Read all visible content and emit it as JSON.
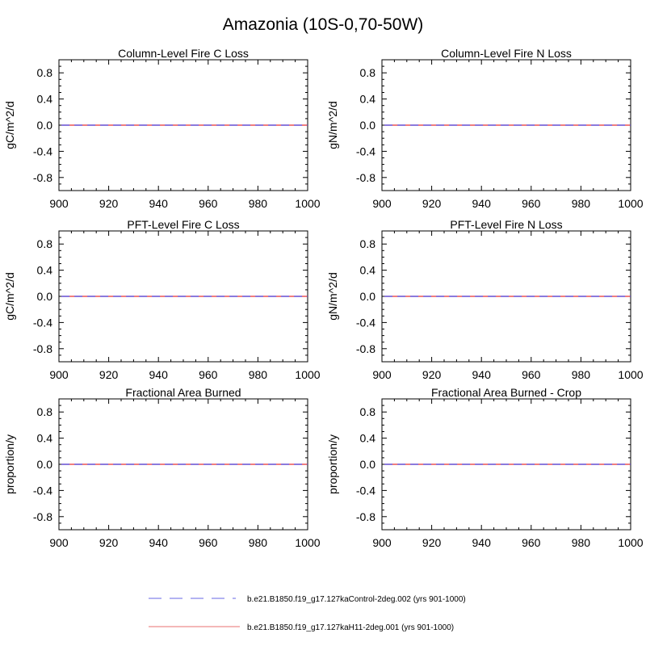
{
  "figure": {
    "title": "Amazonia (10S-0,70-50W)"
  },
  "chart_data": [
    {
      "type": "line",
      "title": "Column-Level Fire C Loss",
      "xlabel": "",
      "ylabel": "gC/m^2/d",
      "xlim": [
        900,
        1000
      ],
      "ylim": [
        -1,
        1
      ],
      "xticks": [
        900,
        920,
        940,
        960,
        980,
        1000
      ],
      "yticks": [
        "0.8",
        "0.4",
        "0.0",
        "-0.4",
        "-0.8"
      ],
      "x": [
        901,
        1000
      ],
      "series": [
        {
          "name": "b.e21.B1850.f19_g17.127kaControl-2deg.002 (yrs 901-1000)",
          "values": [
            0,
            0
          ]
        },
        {
          "name": "b.e21.B1850.f19_g17.127kaH11-2deg.001 (yrs 901-1000)",
          "values": [
            0,
            0
          ]
        }
      ]
    },
    {
      "type": "line",
      "title": "Column-Level Fire N Loss",
      "xlabel": "",
      "ylabel": "gN/m^2/d",
      "xlim": [
        900,
        1000
      ],
      "ylim": [
        -1,
        1
      ],
      "xticks": [
        900,
        920,
        940,
        960,
        980,
        1000
      ],
      "yticks": [
        "0.8",
        "0.4",
        "0.0",
        "-0.4",
        "-0.8"
      ],
      "x": [
        901,
        1000
      ],
      "series": [
        {
          "name": "b.e21.B1850.f19_g17.127kaControl-2deg.002 (yrs 901-1000)",
          "values": [
            0,
            0
          ]
        },
        {
          "name": "b.e21.B1850.f19_g17.127kaH11-2deg.001 (yrs 901-1000)",
          "values": [
            0,
            0
          ]
        }
      ]
    },
    {
      "type": "line",
      "title": "PFT-Level Fire C Loss",
      "xlabel": "",
      "ylabel": "gC/m^2/d",
      "xlim": [
        900,
        1000
      ],
      "ylim": [
        -1,
        1
      ],
      "xticks": [
        900,
        920,
        940,
        960,
        980,
        1000
      ],
      "yticks": [
        "0.8",
        "0.4",
        "0.0",
        "-0.4",
        "-0.8"
      ],
      "x": [
        901,
        1000
      ],
      "series": [
        {
          "name": "b.e21.B1850.f19_g17.127kaControl-2deg.002 (yrs 901-1000)",
          "values": [
            0,
            0
          ]
        },
        {
          "name": "b.e21.B1850.f19_g17.127kaH11-2deg.001 (yrs 901-1000)",
          "values": [
            0,
            0
          ]
        }
      ]
    },
    {
      "type": "line",
      "title": "PFT-Level Fire N Loss",
      "xlabel": "",
      "ylabel": "gN/m^2/d",
      "xlim": [
        900,
        1000
      ],
      "ylim": [
        -1,
        1
      ],
      "xticks": [
        900,
        920,
        940,
        960,
        980,
        1000
      ],
      "yticks": [
        "0.8",
        "0.4",
        "0.0",
        "-0.4",
        "-0.8"
      ],
      "x": [
        901,
        1000
      ],
      "series": [
        {
          "name": "b.e21.B1850.f19_g17.127kaControl-2deg.002 (yrs 901-1000)",
          "values": [
            0,
            0
          ]
        },
        {
          "name": "b.e21.B1850.f19_g17.127kaH11-2deg.001 (yrs 901-1000)",
          "values": [
            0,
            0
          ]
        }
      ]
    },
    {
      "type": "line",
      "title": "Fractional Area Burned",
      "xlabel": "",
      "ylabel": "proportion/y",
      "xlim": [
        900,
        1000
      ],
      "ylim": [
        -1,
        1
      ],
      "xticks": [
        900,
        920,
        940,
        960,
        980,
        1000
      ],
      "yticks": [
        "0.8",
        "0.4",
        "0.0",
        "-0.4",
        "-0.8"
      ],
      "x": [
        901,
        1000
      ],
      "series": [
        {
          "name": "b.e21.B1850.f19_g17.127kaControl-2deg.002 (yrs 901-1000)",
          "values": [
            0,
            0
          ]
        },
        {
          "name": "b.e21.B1850.f19_g17.127kaH11-2deg.001 (yrs 901-1000)",
          "values": [
            0,
            0
          ]
        }
      ]
    },
    {
      "type": "line",
      "title": "Fractional Area Burned - Crop",
      "xlabel": "",
      "ylabel": "proportion/y",
      "xlim": [
        900,
        1000
      ],
      "ylim": [
        -1,
        1
      ],
      "xticks": [
        900,
        920,
        940,
        960,
        980,
        1000
      ],
      "yticks": [
        "0.8",
        "0.4",
        "0.0",
        "-0.4",
        "-0.8"
      ],
      "x": [
        901,
        1000
      ],
      "series": [
        {
          "name": "b.e21.B1850.f19_g17.127kaControl-2deg.002 (yrs 901-1000)",
          "values": [
            0,
            0
          ]
        },
        {
          "name": "b.e21.B1850.f19_g17.127kaH11-2deg.001 (yrs 901-1000)",
          "values": [
            0,
            0
          ]
        }
      ]
    }
  ],
  "legend": {
    "position": "bottom-center",
    "entries": [
      {
        "label": "b.e21.B1850.f19_g17.127kaControl-2deg.002 (yrs 901-1000)",
        "color": "#9a9aee",
        "style": "dashed"
      },
      {
        "label": "b.e21.B1850.f19_g17.127kaH11-2deg.001 (yrs 901-1000)",
        "color": "#f0a0a0",
        "style": "solid"
      }
    ]
  },
  "colors": {
    "control_line": "#4a4ae8",
    "h11_line": "#e83030",
    "axis": "#000000"
  }
}
